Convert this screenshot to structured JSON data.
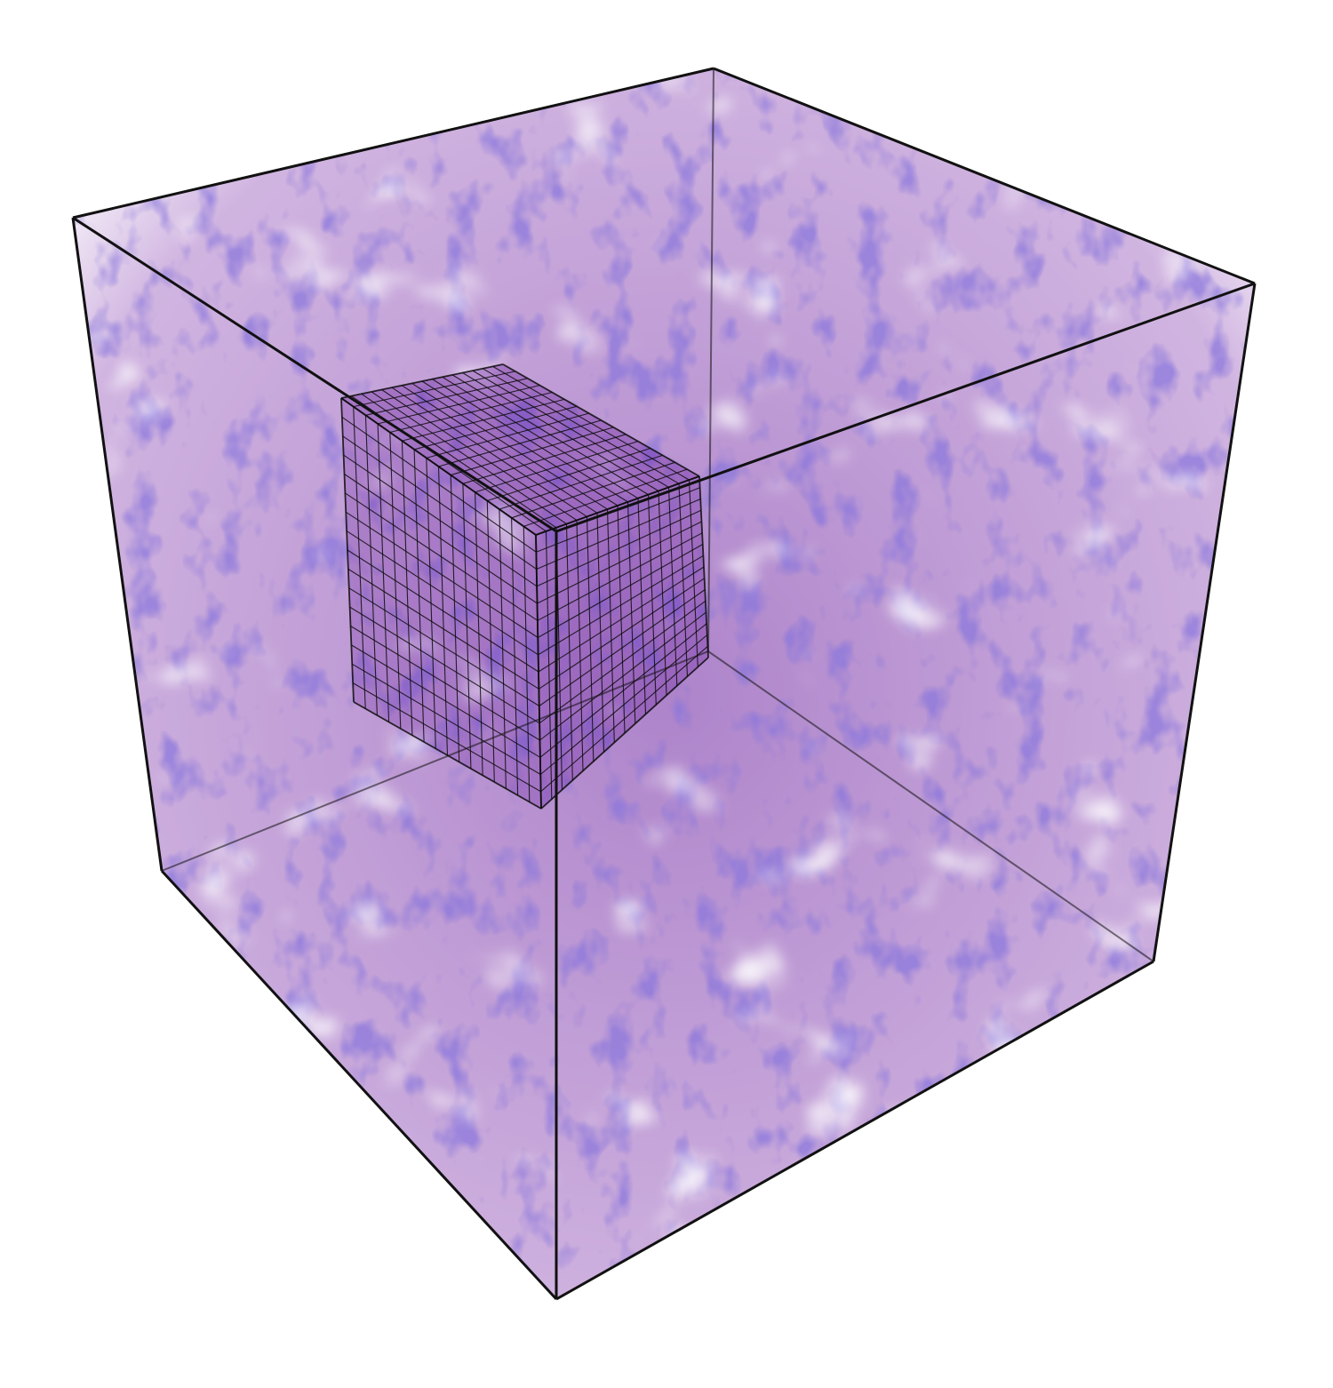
{
  "figure": {
    "description_kind": "volume-rendering",
    "colors": {
      "background": "#ffffff",
      "volume_primary": "#6a1e9e",
      "volume_secondary": "#3f2fb5",
      "volume_light": "#b48ad6",
      "outline": "#111111",
      "subgrid_line": "#0d0d0d"
    },
    "outer_box": {
      "edges": 12
    },
    "subgrid": {
      "cells_per_side": 16
    }
  }
}
